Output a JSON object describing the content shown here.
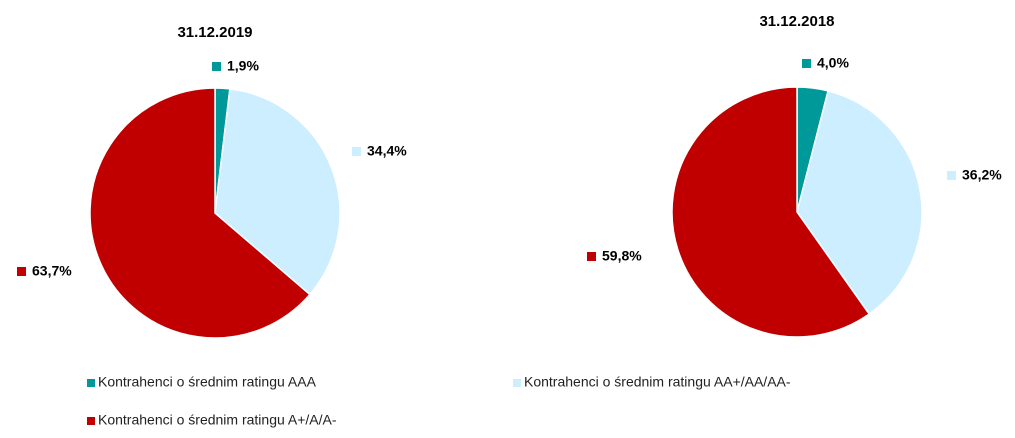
{
  "chart_data": [
    {
      "type": "pie",
      "title": "31.12.2019",
      "categories": [
        "Kontrahenci o średnim ratingu AAA",
        "Kontrahenci o średnim ratingu AA+/AA/AA-",
        "Kontrahenci o średnim ratingu A+/A/A-"
      ],
      "values": [
        1.9,
        34.4,
        63.7
      ],
      "value_labels": [
        "1,9%",
        "34,4%",
        "63,7%"
      ],
      "colors": [
        "#009999",
        "#cceeff",
        "#c00000"
      ]
    },
    {
      "type": "pie",
      "title": "31.12.2018",
      "categories": [
        "Kontrahenci o średnim ratingu AAA",
        "Kontrahenci o średnim ratingu AA+/AA/AA-",
        "Kontrahenci o średnim ratingu A+/A/A-"
      ],
      "values": [
        4.0,
        36.2,
        59.8
      ],
      "value_labels": [
        "4,0%",
        "36,2%",
        "59,8%"
      ],
      "colors": [
        "#009999",
        "#cceeff",
        "#c00000"
      ]
    }
  ]
}
